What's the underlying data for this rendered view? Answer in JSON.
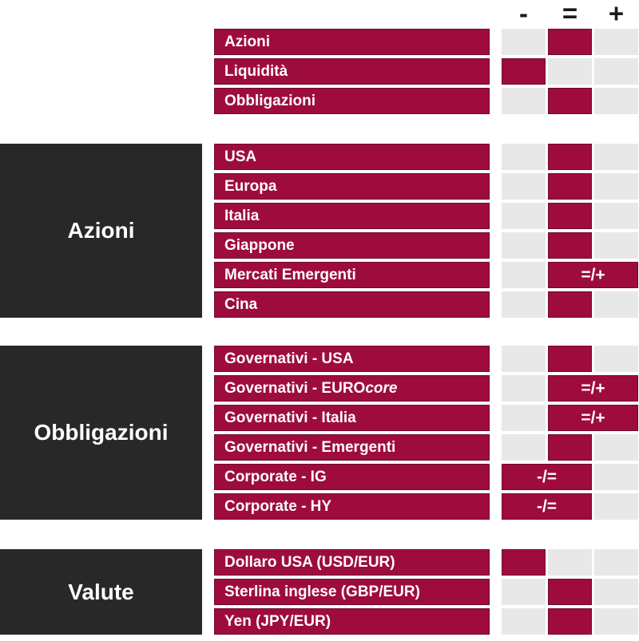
{
  "colors": {
    "accent_red": "#9E0C3E",
    "cell_gray": "#E8E8E8",
    "box_black": "#282828",
    "header_text": "#1B1B1B",
    "label_text": "#FFFFFF"
  },
  "chart_data": {
    "type": "table",
    "columns": [
      "-",
      "=",
      "+"
    ],
    "legend": "highlighted cell marks the view per asset class; merged cells span two columns",
    "groups": [
      {
        "label": "",
        "rows": [
          {
            "label": "Azioni",
            "signal": "="
          },
          {
            "label": "Liquidità",
            "signal": "-"
          },
          {
            "label": "Obbligazioni",
            "signal": "="
          }
        ]
      },
      {
        "label": "Azioni",
        "rows": [
          {
            "label": "USA",
            "signal": "="
          },
          {
            "label": "Europa",
            "signal": "="
          },
          {
            "label": "Italia",
            "signal": "="
          },
          {
            "label": "Giappone",
            "signal": "="
          },
          {
            "label": "Mercati Emergenti",
            "signal": "=/+"
          },
          {
            "label": "Cina",
            "signal": "="
          }
        ]
      },
      {
        "label": "Obbligazioni",
        "rows": [
          {
            "label": "Governativi - USA",
            "signal": "="
          },
          {
            "label": "Governativi - EURO",
            "label_italic": " core",
            "signal": "=/+"
          },
          {
            "label": "Governativi - Italia",
            "signal": "=/+"
          },
          {
            "label": "Governativi - Emergenti",
            "signal": "="
          },
          {
            "label": "Corporate - IG",
            "signal": "-/="
          },
          {
            "label": "Corporate - HY",
            "signal": "-/="
          }
        ]
      },
      {
        "label": "Valute",
        "rows": [
          {
            "label": "Dollaro USA (USD/EUR)",
            "signal": "-"
          },
          {
            "label": "Sterlina inglese (GBP/EUR)",
            "signal": "="
          },
          {
            "label": "Yen (JPY/EUR)",
            "signal": "="
          }
        ]
      }
    ]
  }
}
